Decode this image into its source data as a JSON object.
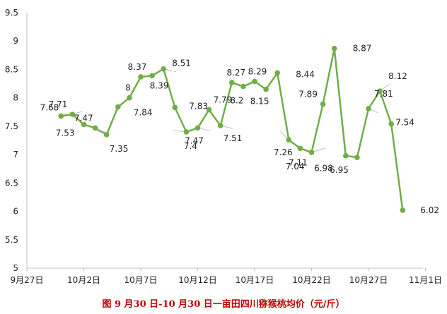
{
  "chart_data": {
    "type": "line",
    "title": "",
    "xlabel": "",
    "ylabel": "",
    "ylim": [
      5,
      9.5
    ],
    "y_ticks": [
      "5",
      "5.5",
      "6",
      "6.5",
      "7",
      "7.5",
      "8",
      "8.5",
      "9",
      "9.5"
    ],
    "x_tick_labels": [
      "9月27日",
      "10月2日",
      "10月7日",
      "10月12日",
      "10月17日",
      "10月22日",
      "10月27日",
      "11月1日"
    ],
    "grid": false,
    "legend": "none",
    "series": [
      {
        "color": "#70ad47",
        "x": [
          "2019-09-30",
          "2019-10-01",
          "2019-10-02",
          "2019-10-03",
          "2019-10-04",
          "2019-10-05",
          "2019-10-06",
          "2019-10-07",
          "2019-10-08",
          "2019-10-09",
          "2019-10-10",
          "2019-10-11",
          "2019-10-12",
          "2019-10-13",
          "2019-10-14",
          "2019-10-15",
          "2019-10-16",
          "2019-10-17",
          "2019-10-18",
          "2019-10-19",
          "2019-10-20",
          "2019-10-21",
          "2019-10-22",
          "2019-10-23",
          "2019-10-24",
          "2019-10-25",
          "2019-10-26",
          "2019-10-27",
          "2019-10-28",
          "2019-10-29",
          "2019-10-30"
        ],
        "values": [
          7.68,
          7.71,
          7.53,
          7.47,
          7.35,
          7.84,
          8.0,
          8.37,
          8.39,
          8.51,
          7.83,
          7.4,
          7.47,
          7.79,
          7.51,
          8.27,
          8.2,
          8.29,
          8.15,
          8.44,
          7.26,
          7.11,
          7.04,
          7.89,
          8.87,
          6.98,
          6.95,
          7.81,
          8.12,
          7.54,
          6.02
        ],
        "labels": [
          "7.68",
          "7.71",
          "7.53",
          "7.47",
          "7.35",
          "7.84",
          "8",
          "8.37",
          "8.39",
          "8.51",
          "7.83",
          "7.4",
          "7.47",
          "7.79",
          "7.51",
          "8.27",
          "8.2",
          "8.29",
          "8.15",
          "8.44",
          "7.26",
          "7.11",
          "7.04",
          "7.89",
          "8.87",
          "6.98",
          "6.95",
          "7.81",
          "8.12",
          "7.54",
          "6.02"
        ]
      }
    ],
    "axis_color": "#bfbfbf",
    "caption": "图 9 月30 日-10 月30 日一亩田四川猕猴桃均价（元/斤）",
    "caption_color": "#c00000"
  }
}
